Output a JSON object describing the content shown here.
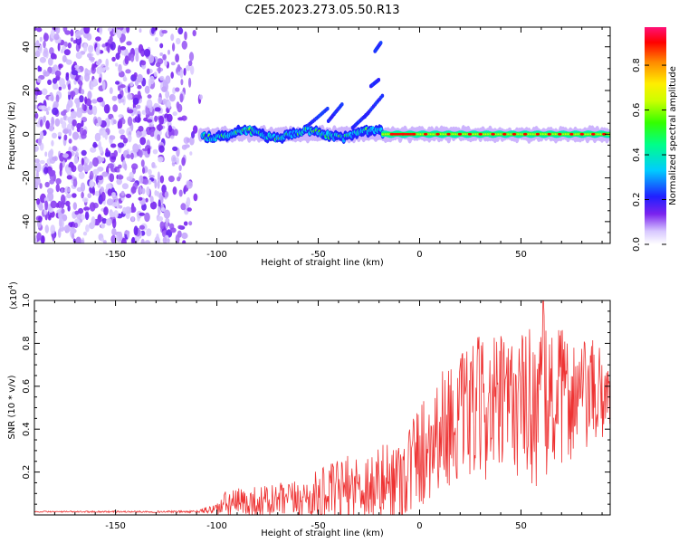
{
  "figure": {
    "title": "C2E5.2023.273.05.50.R13"
  },
  "chart_data": [
    {
      "type": "heatmap",
      "name": "spectrogram",
      "xlabel": "Height of straight line (km)",
      "ylabel": "Frequency (Hz)",
      "xlim": [
        -190,
        94
      ],
      "ylim": [
        -50,
        49
      ],
      "xticks": [
        -150,
        -100,
        -50,
        0,
        50
      ],
      "yticks": [
        -40,
        -20,
        0,
        20,
        40
      ],
      "xtick_labels": [
        "-150",
        "-100",
        "-50",
        "0",
        "50"
      ],
      "ytick_labels": [
        "-40",
        "-20",
        "0",
        "20",
        "40"
      ],
      "description_of_content": [
        {
          "region": "noise",
          "x_range": [
            -190,
            -106
          ],
          "freq_range": [
            -50,
            49
          ],
          "amplitude": "low, scattered"
        },
        {
          "region": "onset",
          "x_range": [
            -107,
            -85
          ],
          "freq_center": -2,
          "amplitude": 0.3
        },
        {
          "region": "turbulent band",
          "x_range": [
            -85,
            -20
          ],
          "freq_center": 0,
          "amplitude": 0.4
        },
        {
          "region": "harmonics",
          "x_range": [
            -50,
            -18
          ],
          "freq_range": [
            5,
            42
          ],
          "amplitude": 0.2
        },
        {
          "region": "steady tone",
          "x_range": [
            -18,
            94
          ],
          "freq_center": 0,
          "amplitude": 0.95
        }
      ]
    },
    {
      "type": "colorbar",
      "name": "amplitude-colorbar",
      "label": "Normalized spectral amplitude",
      "range": [
        0,
        0.97
      ],
      "ticks": [
        0.0,
        0.2,
        0.4,
        0.6,
        0.8
      ],
      "tick_labels": [
        "0.0",
        "0.2",
        "0.4",
        "0.6",
        "0.8"
      ]
    },
    {
      "type": "line",
      "name": "snr-plot",
      "xlabel": "Height of straight line (km)",
      "ylabel": "SNR (10 * v/v)",
      "scale_label": "(x10",
      "scale_exponent": "4",
      "scale_close": ")",
      "xlim": [
        -190,
        94
      ],
      "ylim": [
        0,
        1.0
      ],
      "xticks": [
        -150,
        -100,
        -50,
        0,
        50
      ],
      "yticks": [
        0.2,
        0.4,
        0.6,
        0.8,
        1.0
      ],
      "xtick_labels": [
        "-150",
        "-100",
        "-50",
        "0",
        "50"
      ],
      "ytick_labels": [
        "0.2",
        "0.4",
        "0.6",
        "0.8",
        "1.0"
      ],
      "color": "#ee3333",
      "envelope": {
        "x": [
          -190,
          -110,
          -100,
          -95,
          -60,
          -50,
          -40,
          -30,
          -20,
          -10,
          0,
          10,
          20,
          30,
          40,
          50,
          60,
          70,
          80,
          94
        ],
        "base": [
          0.015,
          0.015,
          0.03,
          0.05,
          0.07,
          0.09,
          0.11,
          0.13,
          0.14,
          0.17,
          0.28,
          0.4,
          0.45,
          0.5,
          0.5,
          0.52,
          0.52,
          0.55,
          0.55,
          0.57
        ],
        "amp": [
          0.003,
          0.005,
          0.03,
          0.07,
          0.09,
          0.12,
          0.15,
          0.17,
          0.18,
          0.22,
          0.26,
          0.28,
          0.3,
          0.34,
          0.34,
          0.34,
          0.42,
          0.32,
          0.28,
          0.22
        ]
      },
      "peak": {
        "x": 61,
        "y": 1.0
      }
    }
  ]
}
